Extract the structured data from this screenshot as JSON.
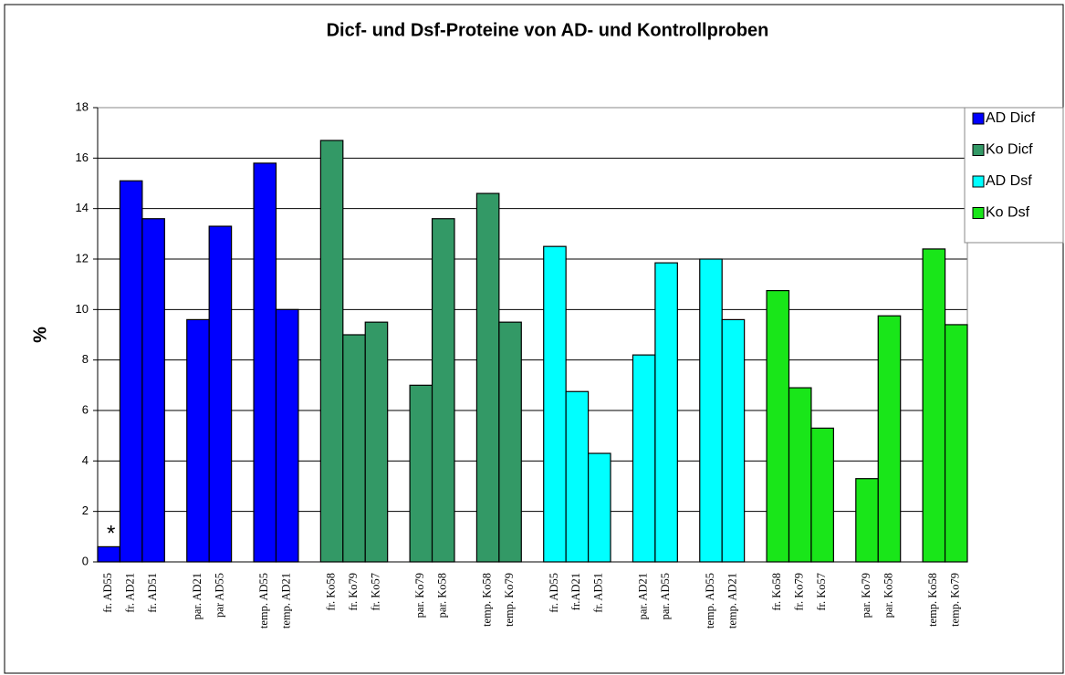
{
  "chart_data": {
    "type": "bar",
    "title": "Dicf- und Dsf-Proteine von AD- und Kontrollproben",
    "y_label": "%",
    "annotation": "*",
    "categories": [
      "fr. AD55",
      "fr. AD21",
      "fr. AD51",
      null,
      "par. AD21",
      "par AD55",
      null,
      "temp. AD55",
      "temp. AD21",
      null,
      "fr. Ko58",
      "fr. Ko79",
      "fr. Ko57",
      null,
      "par. Ko79",
      "par. Ko58",
      null,
      "temp. Ko58",
      "temp. Ko79",
      null,
      "fr. AD55",
      "fr.AD21",
      "fr. AD51",
      null,
      "par. AD21",
      "par. AD55",
      null,
      "temp. AD55",
      "temp. AD21",
      null,
      "fr. Ko58",
      "fr. Ko79",
      "fr. Ko57",
      null,
      "par. Ko79",
      "par. Ko58",
      null,
      "temp. Ko58",
      "temp. Ko79"
    ],
    "series": [
      {
        "name": "AD Dicf",
        "color": "#0000ff",
        "values": [
          0.6,
          15.1,
          13.6,
          null,
          9.6,
          13.3,
          null,
          15.8,
          10.0,
          null,
          null,
          null,
          null,
          null,
          null,
          null,
          null,
          null,
          null,
          null,
          null,
          null,
          null,
          null,
          null,
          null,
          null,
          null,
          null,
          null,
          null,
          null,
          null,
          null,
          null,
          null,
          null,
          null,
          null
        ]
      },
      {
        "name": "Ko Dicf",
        "color": "#339966",
        "values": [
          null,
          null,
          null,
          null,
          null,
          null,
          null,
          null,
          null,
          null,
          16.7,
          9.0,
          9.5,
          null,
          7.0,
          13.6,
          null,
          14.6,
          9.5,
          null,
          null,
          null,
          null,
          null,
          null,
          null,
          null,
          null,
          null,
          null,
          null,
          null,
          null,
          null,
          null,
          null,
          null,
          null,
          null
        ]
      },
      {
        "name": "AD Dsf",
        "color": "#00ffff",
        "values": [
          null,
          null,
          null,
          null,
          null,
          null,
          null,
          null,
          null,
          null,
          null,
          null,
          null,
          null,
          null,
          null,
          null,
          null,
          null,
          null,
          12.5,
          6.75,
          4.3,
          null,
          8.2,
          11.85,
          null,
          12.0,
          9.6,
          null,
          null,
          null,
          null,
          null,
          null,
          null,
          null,
          null,
          null
        ]
      },
      {
        "name": "Ko Dsf",
        "color": "#19e619",
        "values": [
          null,
          null,
          null,
          null,
          null,
          null,
          null,
          null,
          null,
          null,
          null,
          null,
          null,
          null,
          null,
          null,
          null,
          null,
          null,
          null,
          null,
          null,
          null,
          null,
          null,
          null,
          null,
          null,
          null,
          null,
          10.75,
          6.9,
          5.3,
          null,
          3.3,
          9.75,
          null,
          12.4,
          9.4
        ]
      }
    ],
    "ylim": [
      0,
      18
    ],
    "yticks": [
      0,
      2,
      4,
      6,
      8,
      10,
      12,
      14,
      16,
      18
    ],
    "grid": true,
    "legend": "right"
  }
}
